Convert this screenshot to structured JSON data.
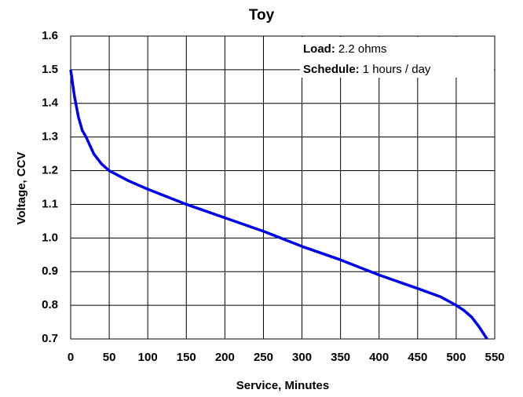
{
  "chart_data": {
    "type": "line",
    "title": "Toy",
    "xlabel": "Service, Minutes",
    "ylabel": "Voltage, CCV",
    "annotations": [
      {
        "label": "Load:",
        "text": "2.2 ohms"
      },
      {
        "label": "Schedule:",
        "text": "1 hours / day"
      }
    ],
    "x": [
      0,
      5,
      10,
      15,
      20,
      30,
      40,
      50,
      75,
      100,
      150,
      200,
      250,
      300,
      350,
      400,
      450,
      480,
      500,
      510,
      520,
      530,
      540
    ],
    "series": [
      {
        "name": "Voltage",
        "color": "#0000ee",
        "values": [
          1.5,
          1.42,
          1.36,
          1.32,
          1.3,
          1.25,
          1.22,
          1.2,
          1.17,
          1.145,
          1.1,
          1.06,
          1.02,
          0.975,
          0.935,
          0.89,
          0.85,
          0.825,
          0.8,
          0.785,
          0.765,
          0.735,
          0.7
        ]
      }
    ],
    "xlim": [
      0,
      550
    ],
    "xticks": [
      0,
      50,
      100,
      150,
      200,
      250,
      300,
      350,
      400,
      450,
      500,
      550
    ],
    "ylim": [
      0.7,
      1.6
    ],
    "yticks": [
      0.7,
      0.8,
      0.9,
      {
        "value": 1,
        "label": "1.0"
      },
      1.1,
      1.2,
      1.3,
      1.4,
      1.5,
      1.6
    ],
    "grid": true
  }
}
